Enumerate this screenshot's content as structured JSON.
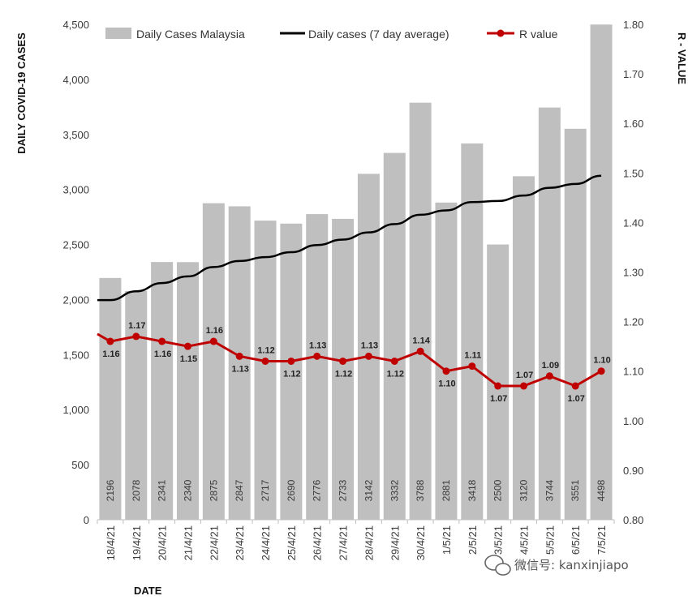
{
  "chart_data": {
    "type": "bar",
    "categories": [
      "18/4/21",
      "19/4/21",
      "20/4/21",
      "21/4/21",
      "22/4/21",
      "23/4/21",
      "24/4/21",
      "25/4/21",
      "26/4/21",
      "27/4/21",
      "28/4/21",
      "29/4/21",
      "30/4/21",
      "1/5/21",
      "2/5/21",
      "3/5/21",
      "4/5/21",
      "5/5/21",
      "6/5/21",
      "7/5/21"
    ],
    "series": [
      {
        "name": "Daily Cases Malaysia",
        "kind": "bar",
        "axis": "left",
        "color": "#bfbfbf",
        "values": [
          2196,
          2078,
          2341,
          2340,
          2875,
          2847,
          2717,
          2690,
          2776,
          2733,
          3142,
          3332,
          3788,
          2881,
          3418,
          2500,
          3120,
          3744,
          3551,
          4498
        ]
      },
      {
        "name": "Daily cases (7 day average)",
        "kind": "line",
        "axis": "left",
        "color": "#000000",
        "values": [
          1995,
          2075,
          2150,
          2210,
          2295,
          2350,
          2385,
          2430,
          2495,
          2545,
          2610,
          2685,
          2770,
          2810,
          2885,
          2895,
          2945,
          3015,
          3050,
          3125
        ]
      },
      {
        "name": "R value",
        "kind": "line-markers",
        "axis": "right",
        "color": "#c00000",
        "values": [
          1.16,
          1.17,
          1.16,
          1.15,
          1.16,
          1.13,
          1.12,
          1.12,
          1.13,
          1.12,
          1.13,
          1.12,
          1.14,
          1.1,
          1.11,
          1.07,
          1.07,
          1.09,
          1.07,
          1.1
        ],
        "lead_in_value": 1.175
      }
    ],
    "bar_labels": [
      "2196",
      "2078",
      "2341",
      "2340",
      "2875",
      "2847",
      "2717",
      "2690",
      "2776",
      "2733",
      "3142",
      "3332",
      "3788",
      "2881",
      "3418",
      "2500",
      "3120",
      "3744",
      "3551",
      "4498"
    ],
    "r_labels": [
      "1.16",
      "1.17",
      "1.16",
      "1.15",
      "1.16",
      "1.13",
      "1.12",
      "1.12",
      "1.13",
      "1.12",
      "1.13",
      "1.12",
      "1.14",
      "1.10",
      "1.11",
      "1.07",
      "1.07",
      "1.09",
      "1.07",
      "1.10"
    ],
    "r_label_position": [
      "below",
      "above",
      "below",
      "below",
      "above",
      "below",
      "above",
      "below",
      "above",
      "below",
      "above",
      "below",
      "above",
      "below",
      "above",
      "below",
      "above",
      "above",
      "below",
      "above"
    ],
    "y_left": {
      "title": "DAILY COVID-19 CASES",
      "min": 0,
      "max": 4500,
      "step": 500,
      "tick_labels": [
        "0",
        "500",
        "1,000",
        "1,500",
        "2,000",
        "2,500",
        "3,000",
        "3,500",
        "4,000",
        "4,500"
      ]
    },
    "y_right": {
      "title": "R - VALUE",
      "min": 0.8,
      "max": 1.8,
      "step": 0.1,
      "tick_labels": [
        "0.80",
        "0.90",
        "1.00",
        "1.10",
        "1.20",
        "1.30",
        "1.40",
        "1.50",
        "1.60",
        "1.70",
        "1.80"
      ]
    },
    "xlabel": "DATE",
    "legend_position": "top",
    "grid": false
  },
  "watermark": {
    "text": "微信号: kanxinjiapo",
    "icon": "wechat-icon"
  }
}
